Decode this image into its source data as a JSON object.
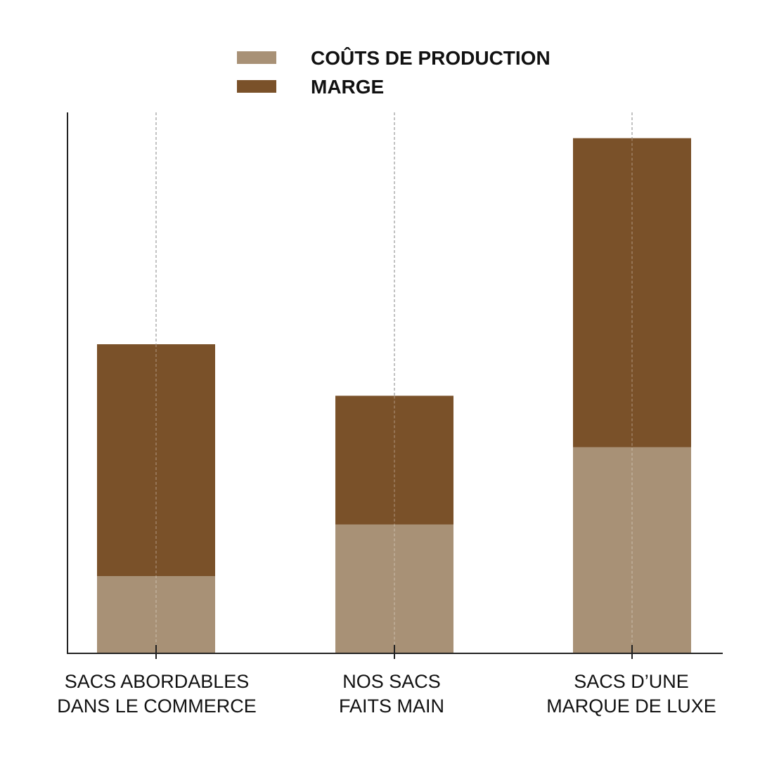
{
  "chart_data": {
    "type": "bar",
    "stacked": true,
    "categories": [
      [
        "SACS ABORDABLES",
        "DANS LE COMMERCE"
      ],
      [
        "NOS SACS",
        "FAITS MAIN"
      ],
      [
        "SACS D’UNE",
        "MARQUE DE LUXE"
      ]
    ],
    "series": [
      {
        "name": "COÛTS DE PRODUCTION",
        "color": "#a89176",
        "values": [
          15,
          25,
          40
        ]
      },
      {
        "name": "MARGE",
        "color": "#7a5129",
        "values": [
          45,
          25,
          60
        ]
      }
    ],
    "ylim": [
      0,
      105
    ],
    "grid": false,
    "legend": "top-center",
    "colors": {
      "axis": "#222222",
      "guide": "#999999"
    }
  }
}
